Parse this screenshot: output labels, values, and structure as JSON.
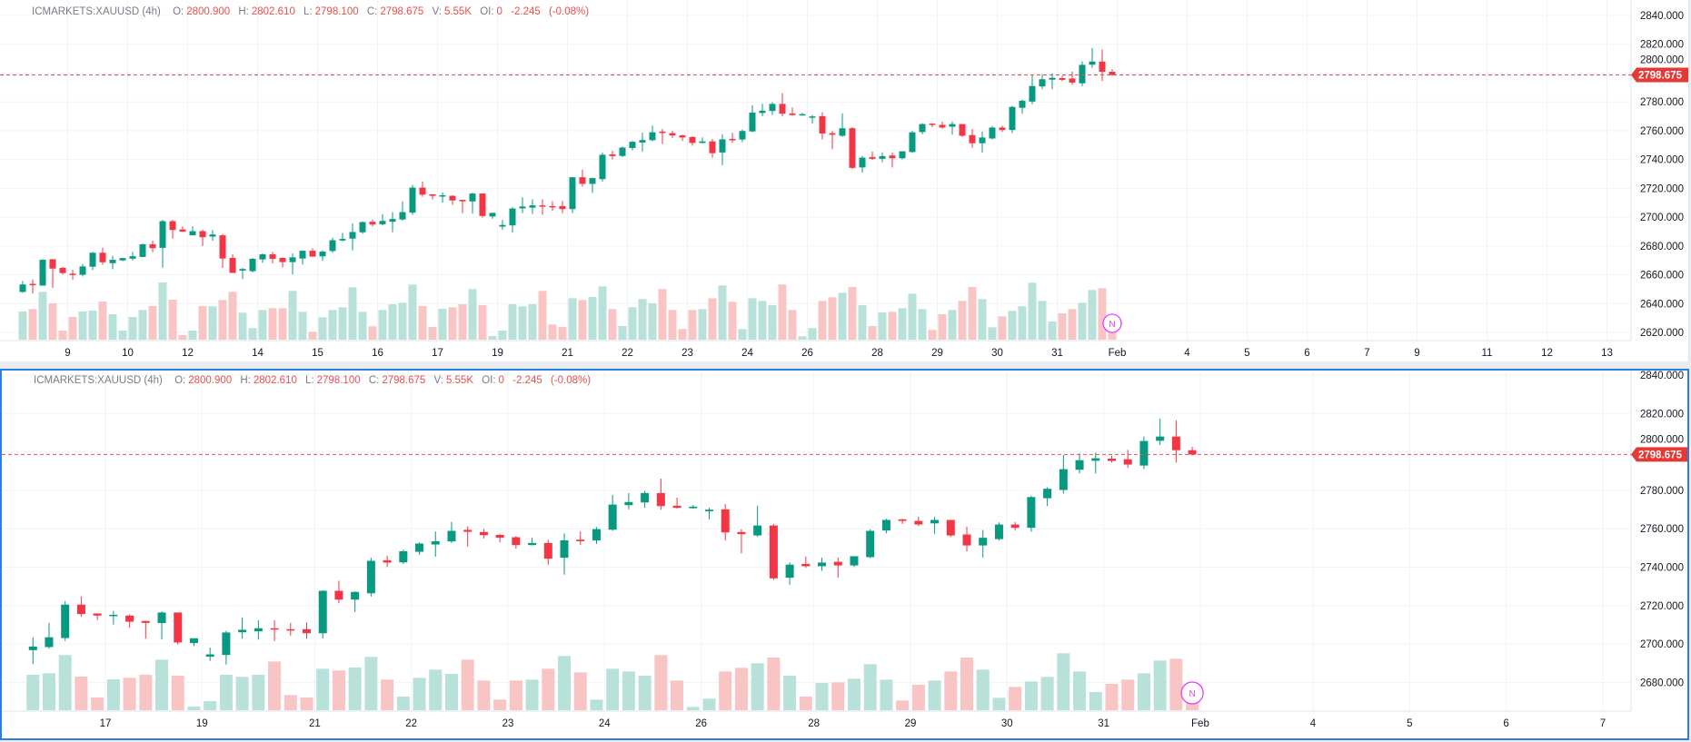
{
  "header": {
    "symbol": "ICMARKETS:XAUUSD (4h)",
    "o_label": "O:",
    "open": "2800.900",
    "h_label": "H:",
    "high": "2802.610",
    "l_label": "L:",
    "low": "2798.100",
    "c_label": "C:",
    "close": "2798.675",
    "v_label": "V:",
    "volume": "5.55K",
    "oi_label": "OI:",
    "oi": "0",
    "change": "-2.245",
    "change_pct": "(-0.08%)"
  },
  "last_price_label": "2798.675",
  "marker_label": "N",
  "colors": {
    "up": "#089981",
    "down": "#f23645",
    "up_volume": "#b7e1d9",
    "down_volume": "#f8c4c4",
    "price_line": "#e0534d",
    "active_pane_border": "#2a7de1",
    "marker": "#e040fb"
  },
  "chart_data": [
    {
      "type": "candlestick",
      "pane": "top",
      "y_ticks": [
        "2840.000",
        "2820.000",
        "2800.000",
        "2780.000",
        "2760.000",
        "2740.000",
        "2720.000",
        "2700.000",
        "2680.000",
        "2660.000",
        "2640.000",
        "2620.000"
      ],
      "y_tick_values": [
        2840,
        2820,
        2800,
        2780,
        2760,
        2740,
        2720,
        2700,
        2680,
        2660,
        2640,
        2620
      ],
      "x_ticks": [
        "9",
        "10",
        "12",
        "14",
        "15",
        "16",
        "17",
        "19",
        "21",
        "22",
        "23",
        "24",
        "26",
        "28",
        "29",
        "30",
        "31",
        "Feb",
        "4",
        "5",
        "6",
        "7",
        "9",
        "11",
        "12",
        "13"
      ],
      "ylim": [
        2611,
        2850
      ],
      "grid": true
    },
    {
      "type": "candlestick",
      "pane": "bottom",
      "y_ticks": [
        "2840.000",
        "2820.000",
        "2800.000",
        "2780.000",
        "2760.000",
        "2740.000",
        "2720.000",
        "2700.000",
        "2680.000"
      ],
      "y_tick_values": [
        2840,
        2820,
        2800,
        2780,
        2760,
        2740,
        2720,
        2700,
        2680
      ],
      "x_ticks": [
        "17",
        "19",
        "21",
        "22",
        "23",
        "24",
        "26",
        "28",
        "29",
        "30",
        "31",
        "Feb",
        "4",
        "5",
        "6",
        "7"
      ],
      "ylim": [
        2663,
        2842
      ],
      "grid": true
    }
  ],
  "candles_ohlcv": [
    [
      2648.1,
      2655.8,
      2647.5,
      2653.3,
      93
    ],
    [
      2653.7,
      2656.7,
      2647.1,
      2652.9,
      101
    ],
    [
      2652.5,
      2670.8,
      2652.5,
      2670.4,
      158
    ],
    [
      2670.8,
      2670.8,
      2650.8,
      2664.3,
      120
    ],
    [
      2664.8,
      2665.4,
      2660.2,
      2661.2,
      30
    ],
    [
      2660.8,
      2663.5,
      2656.7,
      2660.0,
      75
    ],
    [
      2660.0,
      2667.5,
      2658.9,
      2665.8,
      93
    ],
    [
      2665.6,
      2675.8,
      2663.3,
      2675.3,
      96
    ],
    [
      2675.3,
      2678.9,
      2667.0,
      2668.7,
      126
    ],
    [
      2668.1,
      2673.3,
      2663.9,
      2670.4,
      84
    ],
    [
      2670.0,
      2671.8,
      2669.5,
      2671.6,
      30
    ],
    [
      2671.2,
      2675.8,
      2670.0,
      2672.9,
      75
    ],
    [
      2672.4,
      2681.6,
      2672.2,
      2681.2,
      98
    ],
    [
      2681.2,
      2683.7,
      2675.8,
      2678.5,
      111
    ],
    [
      2678.7,
      2698.2,
      2665.0,
      2697.2,
      189
    ],
    [
      2697.2,
      2698.2,
      2685.1,
      2691.1,
      132
    ],
    [
      2691.5,
      2693.6,
      2689.9,
      2689.9,
      15
    ],
    [
      2687.4,
      2693.6,
      2687.4,
      2690.3,
      30
    ],
    [
      2690.3,
      2691.3,
      2680.0,
      2686.1,
      111
    ],
    [
      2686.5,
      2691.1,
      2683.6,
      2688.0,
      110
    ],
    [
      2687.4,
      2688.4,
      2664.8,
      2671.3,
      131
    ],
    [
      2671.7,
      2674.2,
      2661.3,
      2661.3,
      158
    ],
    [
      2662.9,
      2664.8,
      2657.1,
      2664.0,
      89
    ],
    [
      2662.5,
      2671.7,
      2661.7,
      2671.1,
      38
    ],
    [
      2670.7,
      2674.8,
      2668.2,
      2674.2,
      98
    ],
    [
      2674.2,
      2675.9,
      2668.0,
      2671.1,
      104
    ],
    [
      2671.7,
      2672.1,
      2665.2,
      2668.8,
      104
    ],
    [
      2668.8,
      2674.8,
      2660.2,
      2672.1,
      161
    ],
    [
      2671.3,
      2676.7,
      2667.1,
      2676.7,
      92
    ],
    [
      2676.7,
      2678.4,
      2672.6,
      2672.6,
      26
    ],
    [
      2672.8,
      2677.0,
      2669.6,
      2676.1,
      74
    ],
    [
      2676.5,
      2685.7,
      2675.3,
      2684.0,
      98
    ],
    [
      2683.8,
      2689.1,
      2683.2,
      2684.9,
      107
    ],
    [
      2685.1,
      2695.7,
      2676.9,
      2689.7,
      173
    ],
    [
      2689.5,
      2697.0,
      2688.4,
      2696.6,
      92
    ],
    [
      2696.8,
      2698.2,
      2693.6,
      2694.9,
      44
    ],
    [
      2695.1,
      2702.0,
      2694.3,
      2697.4,
      98
    ],
    [
      2696.8,
      2703.5,
      2689.6,
      2698.7,
      117
    ],
    [
      2698.4,
      2711.0,
      2697.5,
      2703.5,
      122
    ],
    [
      2703.1,
      2722.4,
      2701.6,
      2720.5,
      182
    ],
    [
      2720.5,
      2724.7,
      2714.2,
      2715.6,
      111
    ],
    [
      2715.9,
      2715.9,
      2712.4,
      2714.8,
      42
    ],
    [
      2714.5,
      2717.2,
      2710.1,
      2715.2,
      102
    ],
    [
      2714.8,
      2715.3,
      2708.5,
      2711.6,
      107
    ],
    [
      2712.0,
      2712.0,
      2702.8,
      2711.0,
      117
    ],
    [
      2710.9,
      2717.0,
      2702.5,
      2716.4,
      167
    ],
    [
      2716.4,
      2716.4,
      2699.7,
      2700.8,
      114
    ],
    [
      2700.5,
      2703.0,
      2699.0,
      2703.0,
      12
    ],
    [
      2693.4,
      2698.1,
      2691.2,
      2694.6,
      30
    ],
    [
      2694.3,
      2706.9,
      2689.3,
      2706.0,
      117
    ],
    [
      2706.1,
      2713.7,
      2702.8,
      2707.4,
      110
    ],
    [
      2706.6,
      2712.4,
      2702.3,
      2708.2,
      117
    ],
    [
      2708.2,
      2712.4,
      2701.6,
      2707.5,
      161
    ],
    [
      2707.7,
      2711.0,
      2704.4,
      2707.1,
      50
    ],
    [
      2707.7,
      2711.3,
      2702.8,
      2705.6,
      42
    ],
    [
      2705.6,
      2728.0,
      2702.8,
      2727.7,
      137
    ],
    [
      2727.7,
      2732.9,
      2721.2,
      2723.1,
      131
    ],
    [
      2723.1,
      2727.5,
      2716.7,
      2727.1,
      141
    ],
    [
      2726.4,
      2744.9,
      2724.7,
      2743.3,
      176
    ],
    [
      2743.6,
      2746.0,
      2740.1,
      2742.4,
      101
    ],
    [
      2742.5,
      2749.1,
      2741.7,
      2748.3,
      45
    ],
    [
      2748.0,
      2752.9,
      2746.4,
      2752.3,
      107
    ],
    [
      2751.8,
      2758.6,
      2745.5,
      2753.5,
      134
    ],
    [
      2753.4,
      2763.6,
      2752.6,
      2758.9,
      120
    ],
    [
      2759.4,
      2761.3,
      2750.7,
      2758.4,
      167
    ],
    [
      2758.3,
      2759.8,
      2755.0,
      2756.7,
      98
    ],
    [
      2756.8,
      2757.3,
      2752.9,
      2755.3,
      35
    ],
    [
      2755.6,
      2756.2,
      2749.6,
      2751.5,
      98
    ],
    [
      2751.5,
      2755.4,
      2751.3,
      2752.6,
      101
    ],
    [
      2752.6,
      2754.2,
      2741.3,
      2744.4,
      137
    ],
    [
      2744.9,
      2757.6,
      2736.1,
      2754.0,
      179
    ],
    [
      2754.3,
      2758.6,
      2751.6,
      2753.5,
      125
    ],
    [
      2753.9,
      2760.9,
      2752.1,
      2759.8,
      35
    ],
    [
      2759.5,
      2777.6,
      2758.9,
      2772.6,
      137
    ],
    [
      2772.3,
      2778.6,
      2770.1,
      2773.9,
      128
    ],
    [
      2773.7,
      2779.8,
      2770.9,
      2778.6,
      114
    ],
    [
      2778.6,
      2786.1,
      2769.9,
      2771.8,
      182
    ],
    [
      2772.0,
      2776.2,
      2770.4,
      2770.9,
      98
    ],
    [
      2770.7,
      2772.4,
      2770.4,
      2771.5,
      11
    ],
    [
      2769.1,
      2770.9,
      2764.9,
      2769.9,
      38
    ],
    [
      2770.1,
      2772.8,
      2753.9,
      2758.1,
      128
    ],
    [
      2758.3,
      2759.7,
      2747.2,
      2757.2,
      140
    ],
    [
      2756.5,
      2772.0,
      2755.7,
      2761.7,
      155
    ],
    [
      2761.7,
      2762.5,
      2733.4,
      2734.2,
      174
    ],
    [
      2734.5,
      2742.5,
      2730.9,
      2741.3,
      114
    ],
    [
      2741.7,
      2745.5,
      2739.7,
      2740.5,
      45
    ],
    [
      2740.5,
      2745.0,
      2738.1,
      2742.4,
      90
    ],
    [
      2742.8,
      2745.0,
      2734.5,
      2740.9,
      92
    ],
    [
      2740.9,
      2745.7,
      2740.1,
      2745.7,
      104
    ],
    [
      2745.2,
      2759.8,
      2744.7,
      2758.9,
      152
    ],
    [
      2759.1,
      2765.2,
      2757.6,
      2764.6,
      101
    ],
    [
      2764.9,
      2765.2,
      2762.5,
      2764.1,
      32
    ],
    [
      2764.1,
      2766.3,
      2761.4,
      2762.2,
      84
    ],
    [
      2762.8,
      2766.3,
      2757.3,
      2764.6,
      98
    ],
    [
      2764.6,
      2764.6,
      2755.7,
      2756.5,
      128
    ],
    [
      2757.0,
      2761.1,
      2748.2,
      2751.3,
      174
    ],
    [
      2751.3,
      2759.4,
      2744.9,
      2755.3,
      134
    ],
    [
      2754.6,
      2763.3,
      2753.9,
      2762.2,
      41
    ],
    [
      2762.2,
      2763.5,
      2759.2,
      2760.5,
      77
    ],
    [
      2760.5,
      2777.2,
      2758.4,
      2776.5,
      95
    ],
    [
      2775.9,
      2781.6,
      2771.8,
      2780.8,
      110
    ],
    [
      2780.2,
      2798.4,
      2778.4,
      2791.0,
      188
    ],
    [
      2790.7,
      2799.2,
      2788.8,
      2795.7,
      128
    ],
    [
      2795.4,
      2799.7,
      2788.8,
      2796.7,
      60
    ],
    [
      2796.5,
      2798.0,
      2794.5,
      2795.3,
      87
    ],
    [
      2796.2,
      2801.1,
      2791.7,
      2793.4,
      101
    ],
    [
      2792.9,
      2808.0,
      2791.0,
      2805.7,
      122
    ],
    [
      2805.8,
      2817.3,
      2803.6,
      2808.0,
      164
    ],
    [
      2808.0,
      2816.4,
      2794.5,
      2800.9,
      170
    ],
    [
      2800.9,
      2802.61,
      2798.1,
      2798.675,
      27
    ]
  ]
}
